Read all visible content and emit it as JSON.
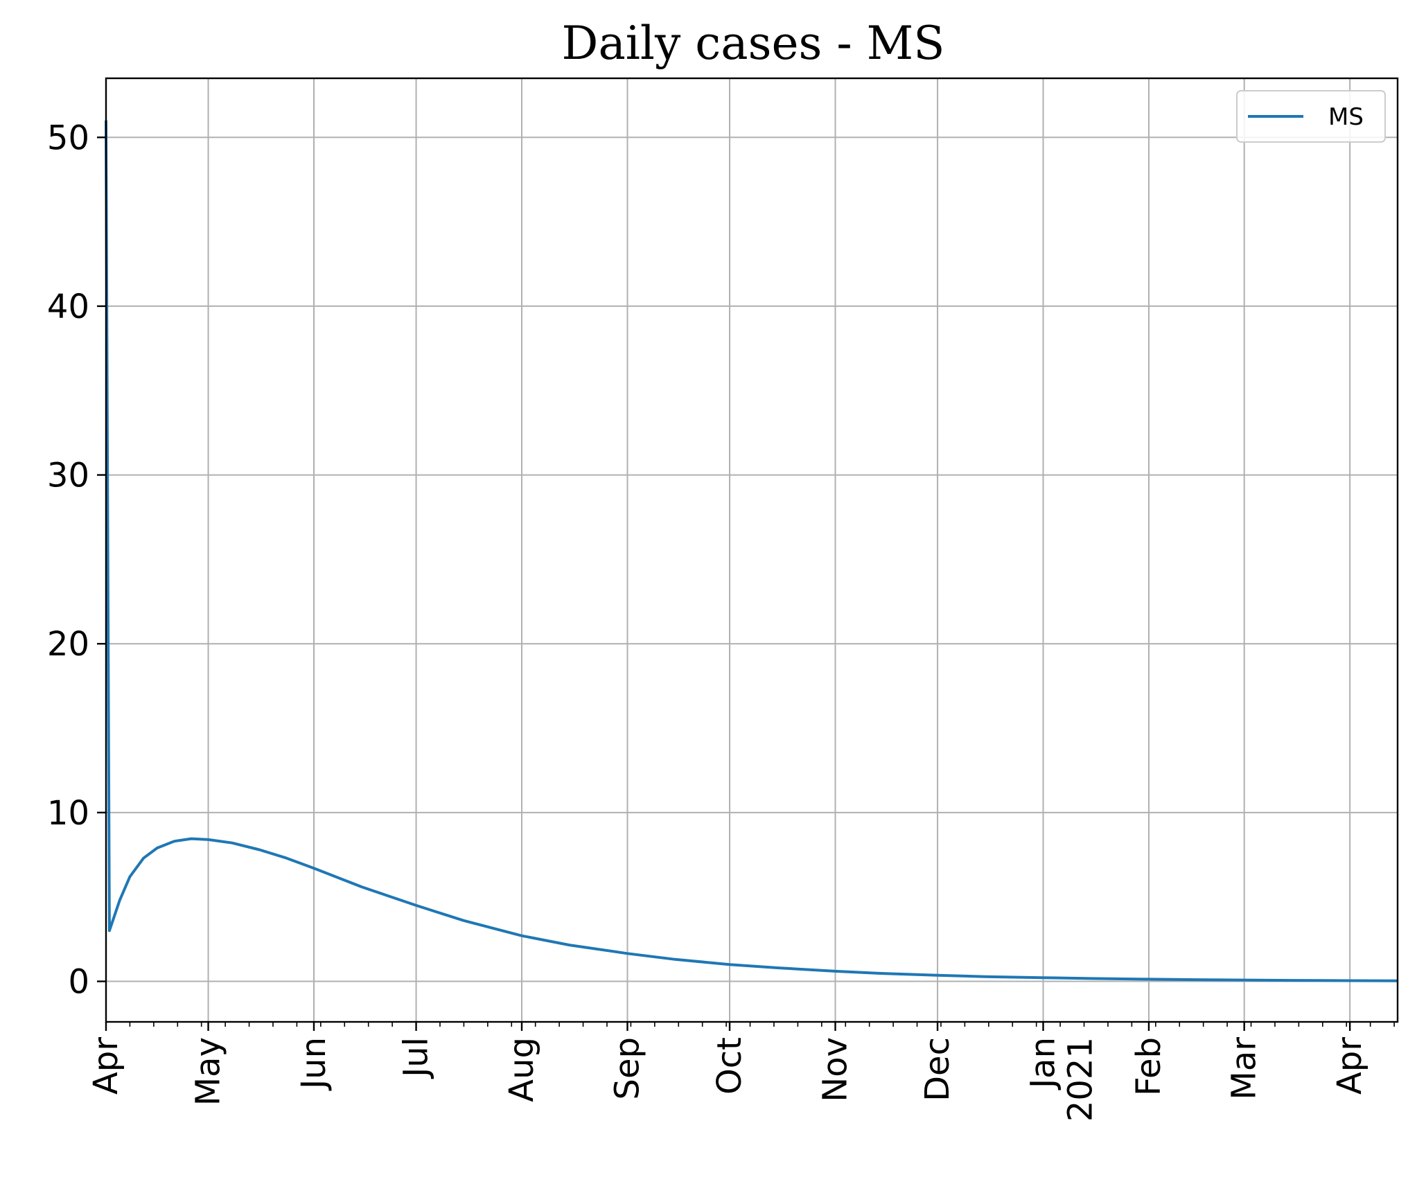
{
  "chart_data": {
    "type": "line",
    "title": "Daily cases - MS",
    "xlabel": "",
    "ylabel": "",
    "x_start": "2020-04-01",
    "x_end": "2021-04-15",
    "ylim": [
      -2.4,
      53.5
    ],
    "yticks": [
      0,
      10,
      20,
      30,
      40,
      50
    ],
    "xticks": [
      {
        "date": "2020-04-01",
        "label": "Apr"
      },
      {
        "date": "2020-05-01",
        "label": "May"
      },
      {
        "date": "2020-06-01",
        "label": "Jun"
      },
      {
        "date": "2020-07-01",
        "label": "Jul"
      },
      {
        "date": "2020-08-01",
        "label": "Aug"
      },
      {
        "date": "2020-09-01",
        "label": "Sep"
      },
      {
        "date": "2020-10-01",
        "label": "Oct"
      },
      {
        "date": "2020-11-01",
        "label": "Nov"
      },
      {
        "date": "2020-12-01",
        "label": "Dec"
      },
      {
        "date": "2021-01-01",
        "label": "Jan",
        "sublabel": "2021"
      },
      {
        "date": "2021-02-01",
        "label": "Feb"
      },
      {
        "date": "2021-03-01",
        "label": "Mar"
      },
      {
        "date": "2021-04-01",
        "label": "Apr"
      }
    ],
    "grid": true,
    "legend_position": "top-right",
    "series": [
      {
        "name": "MS",
        "color": "#1f77b4",
        "x": [
          "2020-04-01",
          "2020-04-02",
          "2020-04-05",
          "2020-04-08",
          "2020-04-12",
          "2020-04-16",
          "2020-04-21",
          "2020-04-26",
          "2020-05-01",
          "2020-05-08",
          "2020-05-16",
          "2020-05-24",
          "2020-06-01",
          "2020-06-15",
          "2020-07-01",
          "2020-07-15",
          "2020-08-01",
          "2020-08-15",
          "2020-09-01",
          "2020-09-15",
          "2020-10-01",
          "2020-10-15",
          "2020-11-01",
          "2020-11-15",
          "2020-12-01",
          "2020-12-15",
          "2021-01-01",
          "2021-01-15",
          "2021-02-01",
          "2021-02-15",
          "2021-03-01",
          "2021-03-15",
          "2021-04-01",
          "2021-04-15"
        ],
        "y": [
          51.0,
          3.0,
          4.8,
          6.2,
          7.3,
          7.9,
          8.3,
          8.45,
          8.4,
          8.2,
          7.8,
          7.3,
          6.7,
          5.6,
          4.5,
          3.6,
          2.7,
          2.15,
          1.65,
          1.3,
          1.0,
          0.8,
          0.6,
          0.47,
          0.36,
          0.28,
          0.22,
          0.17,
          0.13,
          0.1,
          0.08,
          0.06,
          0.04,
          0.03
        ]
      }
    ]
  }
}
